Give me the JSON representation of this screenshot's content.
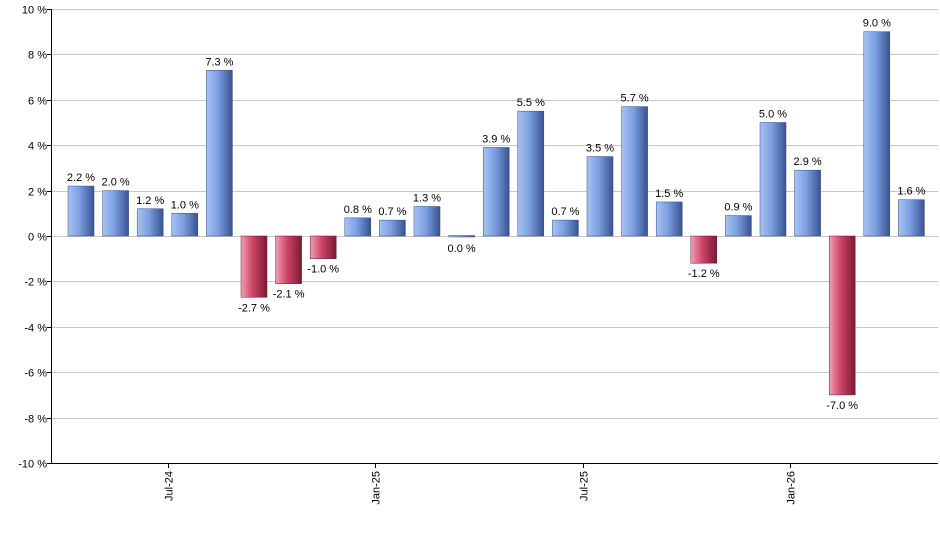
{
  "chart_data": {
    "type": "bar",
    "title": "",
    "xlabel": "",
    "ylabel": "",
    "ylim": [
      -10,
      10
    ],
    "y_ticks": [
      -10,
      -8,
      -6,
      -4,
      -2,
      0,
      2,
      4,
      6,
      8,
      10
    ],
    "y_tick_labels": [
      "-10 %",
      "-8 %",
      "-6 %",
      "-4 %",
      "-2 %",
      "0 %",
      "2 %",
      "4 %",
      "6 %",
      "8 %",
      "10 %"
    ],
    "grid": true,
    "legend": "none",
    "value_suffix": " %",
    "x_ticks": [
      {
        "label": "Jul-24",
        "after_bar": 2
      },
      {
        "label": "Jan-25",
        "after_bar": 8
      },
      {
        "label": "Jul-25",
        "after_bar": 14
      },
      {
        "label": "Jan-26",
        "after_bar": 20
      }
    ],
    "values": [
      2.2,
      2.0,
      1.2,
      1.0,
      7.3,
      -2.7,
      -2.1,
      -1.0,
      0.8,
      0.7,
      1.3,
      0.0,
      3.9,
      5.5,
      0.7,
      3.5,
      5.7,
      1.5,
      -1.2,
      0.9,
      5.0,
      2.9,
      -7.0,
      9.0,
      1.6
    ],
    "positive_color": "#6f95dc",
    "negative_color": "#c83c5e"
  }
}
